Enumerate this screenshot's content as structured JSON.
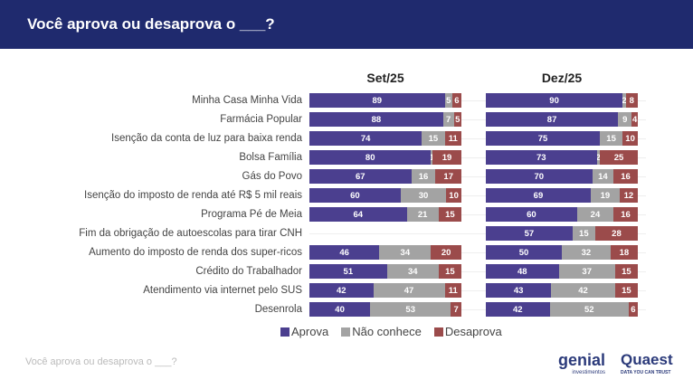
{
  "header": {
    "title": "Você aprova ou desaprova o ___?"
  },
  "footer": {
    "text": "Você aprova ou desaprova o ___?"
  },
  "logos": {
    "genial": "genial",
    "genial_sub": "investimentos",
    "quaest": "Quaest",
    "quaest_sub": "DATA YOU CAN TRUST"
  },
  "colors": {
    "aprova": "#4b3f8f",
    "nao_conhece": "#a3a3a3",
    "desaprova": "#9b4b4b",
    "header": "#1f2a6e"
  },
  "chart_data": {
    "type": "bar",
    "stacked": true,
    "orientation": "horizontal",
    "categories": [
      "Minha Casa Minha Vida",
      "Farmácia Popular",
      "Isenção da conta de luz para baixa renda",
      "Bolsa Família",
      "Gás do Povo",
      "Isenção do imposto de renda até R$ 5 mil reais",
      "Programa Pé de Meia",
      "Fim da obrigação de autoescolas para tirar CNH",
      "Aumento do imposto de renda dos super-ricos",
      "Crédito do Trabalhador",
      "Atendimento via internet pelo SUS",
      "Desenrola"
    ],
    "legend": [
      "Aprova",
      "Não conhece",
      "Desaprova"
    ],
    "legend_position": "bottom",
    "panels": [
      {
        "title": "Set/25",
        "series": [
          {
            "name": "Aprova",
            "values": [
              89,
              88,
              74,
              80,
              67,
              60,
              64,
              null,
              46,
              51,
              42,
              40
            ]
          },
          {
            "name": "Não conhece",
            "values": [
              5,
              7,
              15,
              1,
              16,
              30,
              21,
              null,
              34,
              34,
              47,
              53
            ]
          },
          {
            "name": "Desaprova",
            "values": [
              6,
              5,
              11,
              19,
              17,
              10,
              15,
              null,
              20,
              15,
              11,
              7
            ]
          }
        ]
      },
      {
        "title": "Dez/25",
        "series": [
          {
            "name": "Aprova",
            "values": [
              90,
              87,
              75,
              73,
              70,
              69,
              60,
              57,
              50,
              48,
              43,
              42
            ]
          },
          {
            "name": "Não conhece",
            "values": [
              2,
              9,
              15,
              2,
              14,
              19,
              24,
              15,
              32,
              37,
              42,
              52
            ]
          },
          {
            "name": "Desaprova",
            "values": [
              8,
              4,
              10,
              25,
              16,
              12,
              16,
              28,
              18,
              15,
              15,
              6
            ]
          }
        ]
      }
    ]
  }
}
